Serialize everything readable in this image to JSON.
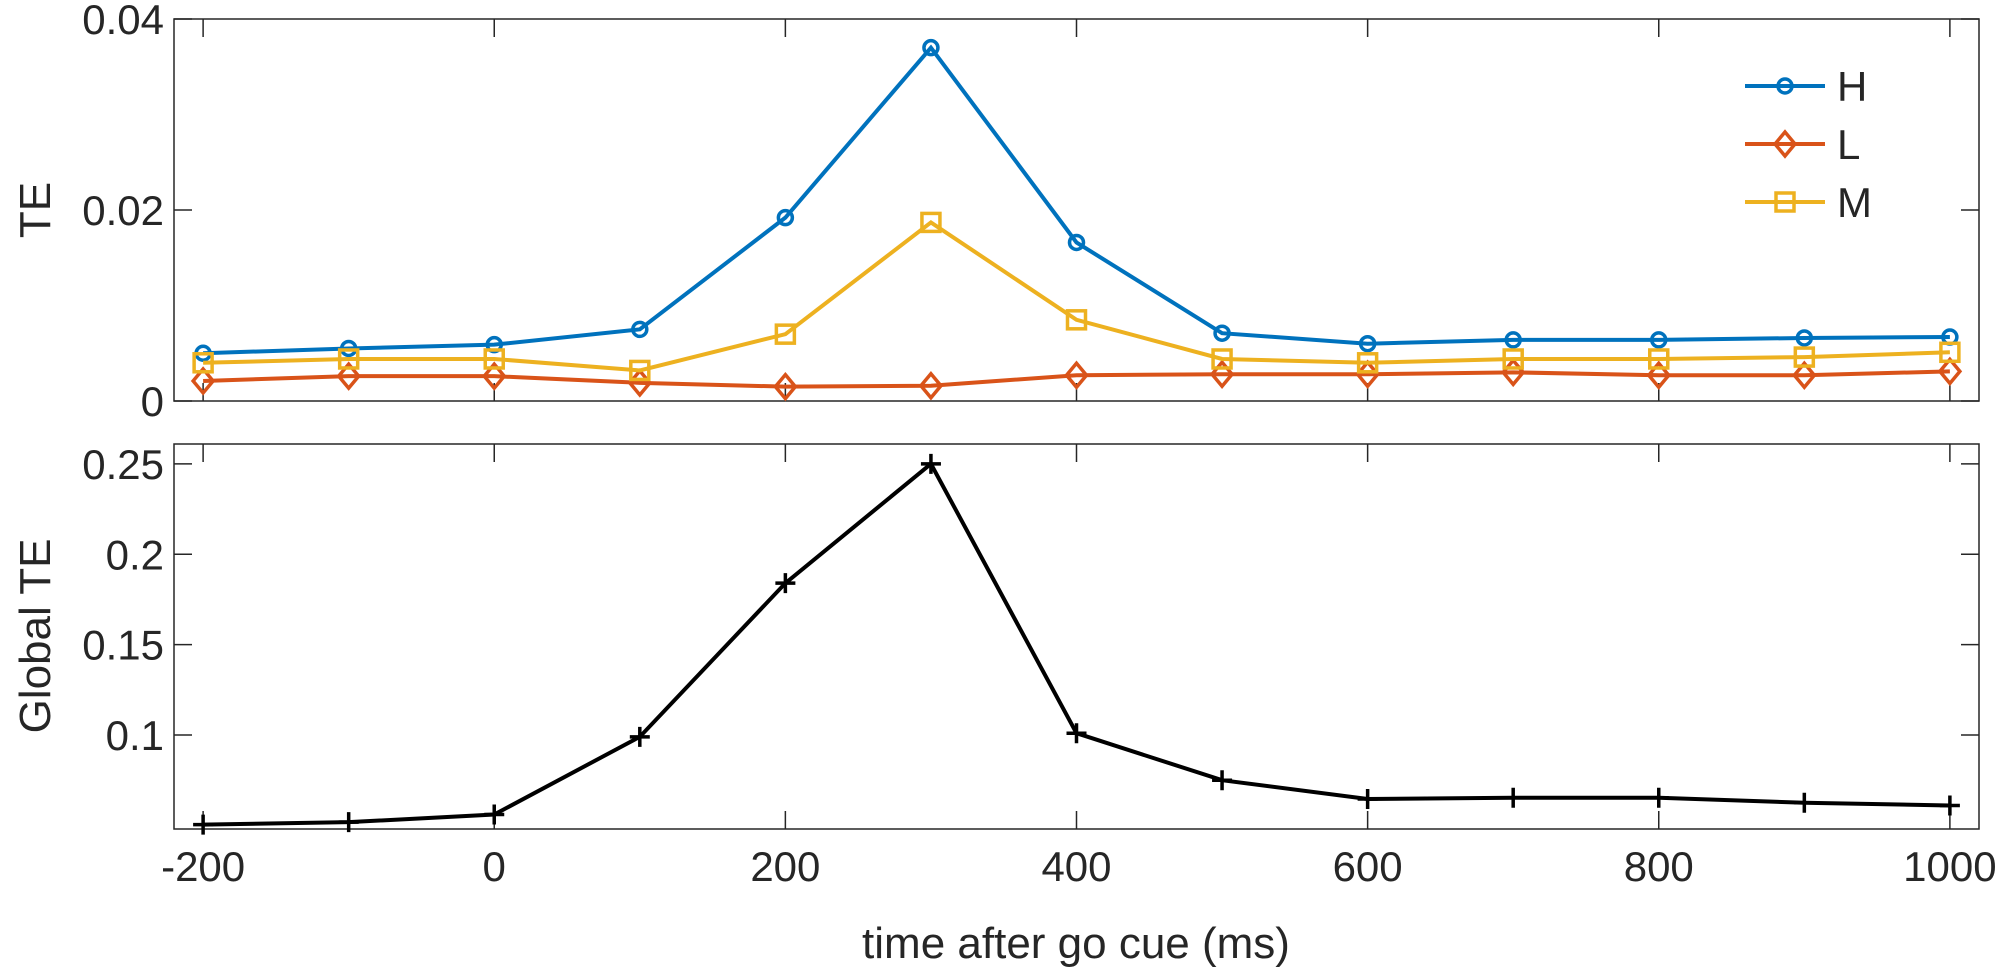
{
  "chart_data": [
    {
      "type": "line",
      "ylabel": "TE",
      "xlim": [
        -220,
        1020
      ],
      "ylim": [
        0,
        0.04
      ],
      "yticks": [
        0,
        0.02,
        0.04
      ],
      "ytick_labels": [
        "0",
        "0.02",
        "0.04"
      ],
      "x": [
        -200,
        -100,
        0,
        100,
        200,
        300,
        400,
        500,
        600,
        700,
        800,
        900,
        1000
      ],
      "legend_position": "top-right",
      "series": [
        {
          "name": "H",
          "color": "#0072BD",
          "marker": "circle",
          "values": [
            0.005,
            0.0055,
            0.0059,
            0.0075,
            0.0192,
            0.037,
            0.0166,
            0.0071,
            0.006,
            0.0064,
            0.0064,
            0.0066,
            0.0067
          ]
        },
        {
          "name": "L",
          "color": "#D95319",
          "marker": "diamond",
          "values": [
            0.0021,
            0.0026,
            0.0026,
            0.0019,
            0.0015,
            0.0016,
            0.0027,
            0.0028,
            0.0028,
            0.003,
            0.0027,
            0.0027,
            0.0031
          ]
        },
        {
          "name": "M",
          "color": "#EDB120",
          "marker": "square",
          "values": [
            0.004,
            0.0044,
            0.0044,
            0.0032,
            0.007,
            0.0187,
            0.0085,
            0.0044,
            0.004,
            0.0044,
            0.0044,
            0.0046,
            0.0051
          ]
        }
      ]
    },
    {
      "type": "line",
      "ylabel": "Global TE",
      "xlabel": "time after go cue (ms)",
      "xlim": [
        -220,
        1020
      ],
      "ylim": [
        0.048,
        0.261
      ],
      "yticks": [
        0.1,
        0.15,
        0.2,
        0.25
      ],
      "ytick_labels": [
        "0.1",
        "0.15",
        "0.2",
        "0.25"
      ],
      "xticks": [
        -200,
        0,
        200,
        400,
        600,
        800,
        1000
      ],
      "xtick_labels": [
        "-200",
        "0",
        "200",
        "400",
        "600",
        "800",
        "1000"
      ],
      "x": [
        -200,
        -100,
        0,
        100,
        200,
        300,
        400,
        500,
        600,
        700,
        800,
        900,
        1000
      ],
      "series": [
        {
          "name": "Global TE",
          "color": "#000000",
          "marker": "plus",
          "values": [
            0.0504,
            0.0518,
            0.056,
            0.099,
            0.184,
            0.25,
            0.101,
            0.075,
            0.0646,
            0.0653,
            0.0653,
            0.0625,
            0.061
          ]
        }
      ]
    }
  ]
}
